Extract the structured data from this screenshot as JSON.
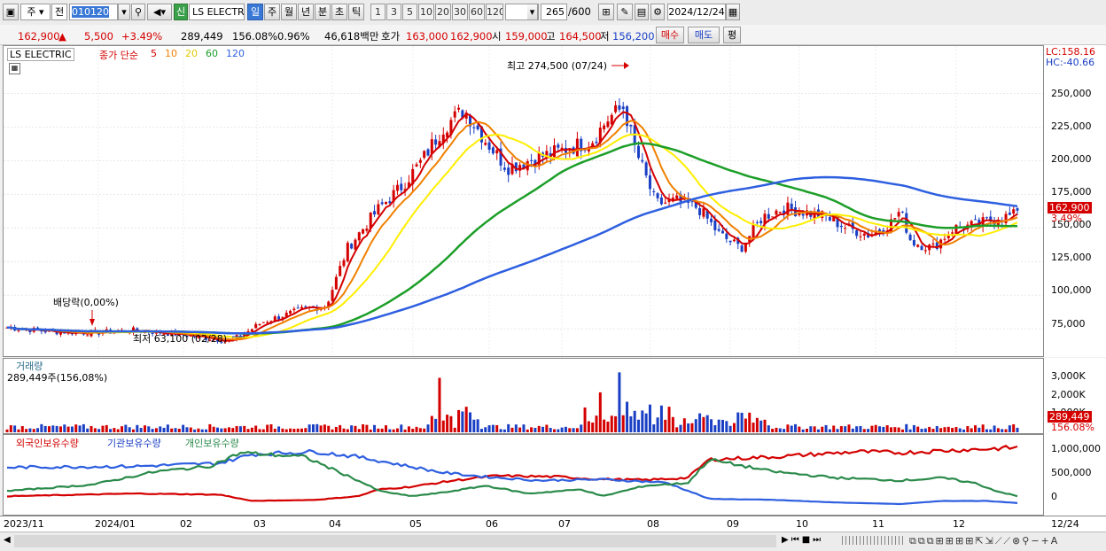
{
  "toolbar": {
    "mode_main": "주",
    "mode_prev": "전",
    "code": "010120",
    "new_badge": "신",
    "stock_name": "LS ELECTRI",
    "periods": [
      "일",
      "주",
      "월",
      "년",
      "분",
      "초",
      "틱"
    ],
    "active_period": "일",
    "intervals": [
      "1",
      "3",
      "5",
      "10",
      "20",
      "30",
      "60",
      "120"
    ],
    "count": "265",
    "count_total": "/600",
    "date": "2024/12/24"
  },
  "quote": {
    "price": "162,900",
    "change_arrow": "▲",
    "change": "5,500",
    "change_pct": "+3.49%",
    "volume": "289,449",
    "vol_ratio": "156.08%",
    "turnover": "0.96%",
    "amount": "46,618백만",
    "ask_label": "호가",
    "ask": "163,000",
    "bid": "162,900",
    "open_label": "시",
    "open": "159,000",
    "high_label": "고",
    "high": "164,500",
    "low_label": "저",
    "low": "156,200",
    "buy_button": "매수",
    "sell_button": "매도",
    "eval_button": "평"
  },
  "price_panel": {
    "name": "LS ELECTRIC",
    "ma_label": "종가 단순",
    "ma_periods": [
      "5",
      "10",
      "20",
      "60",
      "120"
    ],
    "ma_colors": [
      "#d40000",
      "#f08000",
      "#ffee00",
      "#1c9e28",
      "#2e5fe0"
    ],
    "lc": "LC:158.16",
    "hc": "HC:-40.66",
    "max_annotation": "최고 274,500 (07/24)",
    "min_annotation": "최저 63,100 (02/28)",
    "dividend_annotation": "배당락(0,00%)",
    "last_price_tag": "162,900",
    "last_pct_tag": "3.49%",
    "y_ticks": [
      "250,000",
      "225,000",
      "200,000",
      "175,000",
      "150,000",
      "125,000",
      "100,000",
      "75,000"
    ]
  },
  "volume_panel": {
    "title": "거래량",
    "value": "289,449주(156,08%)",
    "y_ticks": [
      "3,000K",
      "2,000K",
      "1,000K"
    ],
    "last_tag": "289,449",
    "last_pct": "156.08%"
  },
  "holdings_panel": {
    "legend": [
      "외국인보유수량",
      "기관보유수량",
      "개인보유수량"
    ],
    "colors": [
      "#d40000",
      "#2e5fe0",
      "#2a8a4a"
    ],
    "y_ticks": [
      "1,000,000",
      "500,000",
      "0"
    ]
  },
  "x_axis": [
    "2023/11",
    "2024/01",
    "02",
    "03",
    "04",
    "05",
    "06",
    "07",
    "08",
    "09",
    "10",
    "11",
    "12",
    "12/24"
  ],
  "chart_data": {
    "type": "line",
    "x": [
      "2023/11",
      "2024/01",
      "02",
      "03",
      "04",
      "05",
      "06",
      "07",
      "08",
      "09",
      "10",
      "11",
      "12",
      "12/24"
    ],
    "series": [
      {
        "name": "5",
        "values": [
          76000,
          73000,
          69000,
          70000,
          92000,
          170000,
          200000,
          215000,
          170000,
          140000,
          160000,
          145000,
          150000,
          160000
        ]
      },
      {
        "name": "120",
        "values": [
          84000,
          80000,
          76000,
          74000,
          78000,
          98000,
          125000,
          145000,
          165000,
          175000,
          182000,
          178000,
          170000,
          166000
        ]
      }
    ],
    "ylim": [
      60000,
      280000
    ]
  }
}
